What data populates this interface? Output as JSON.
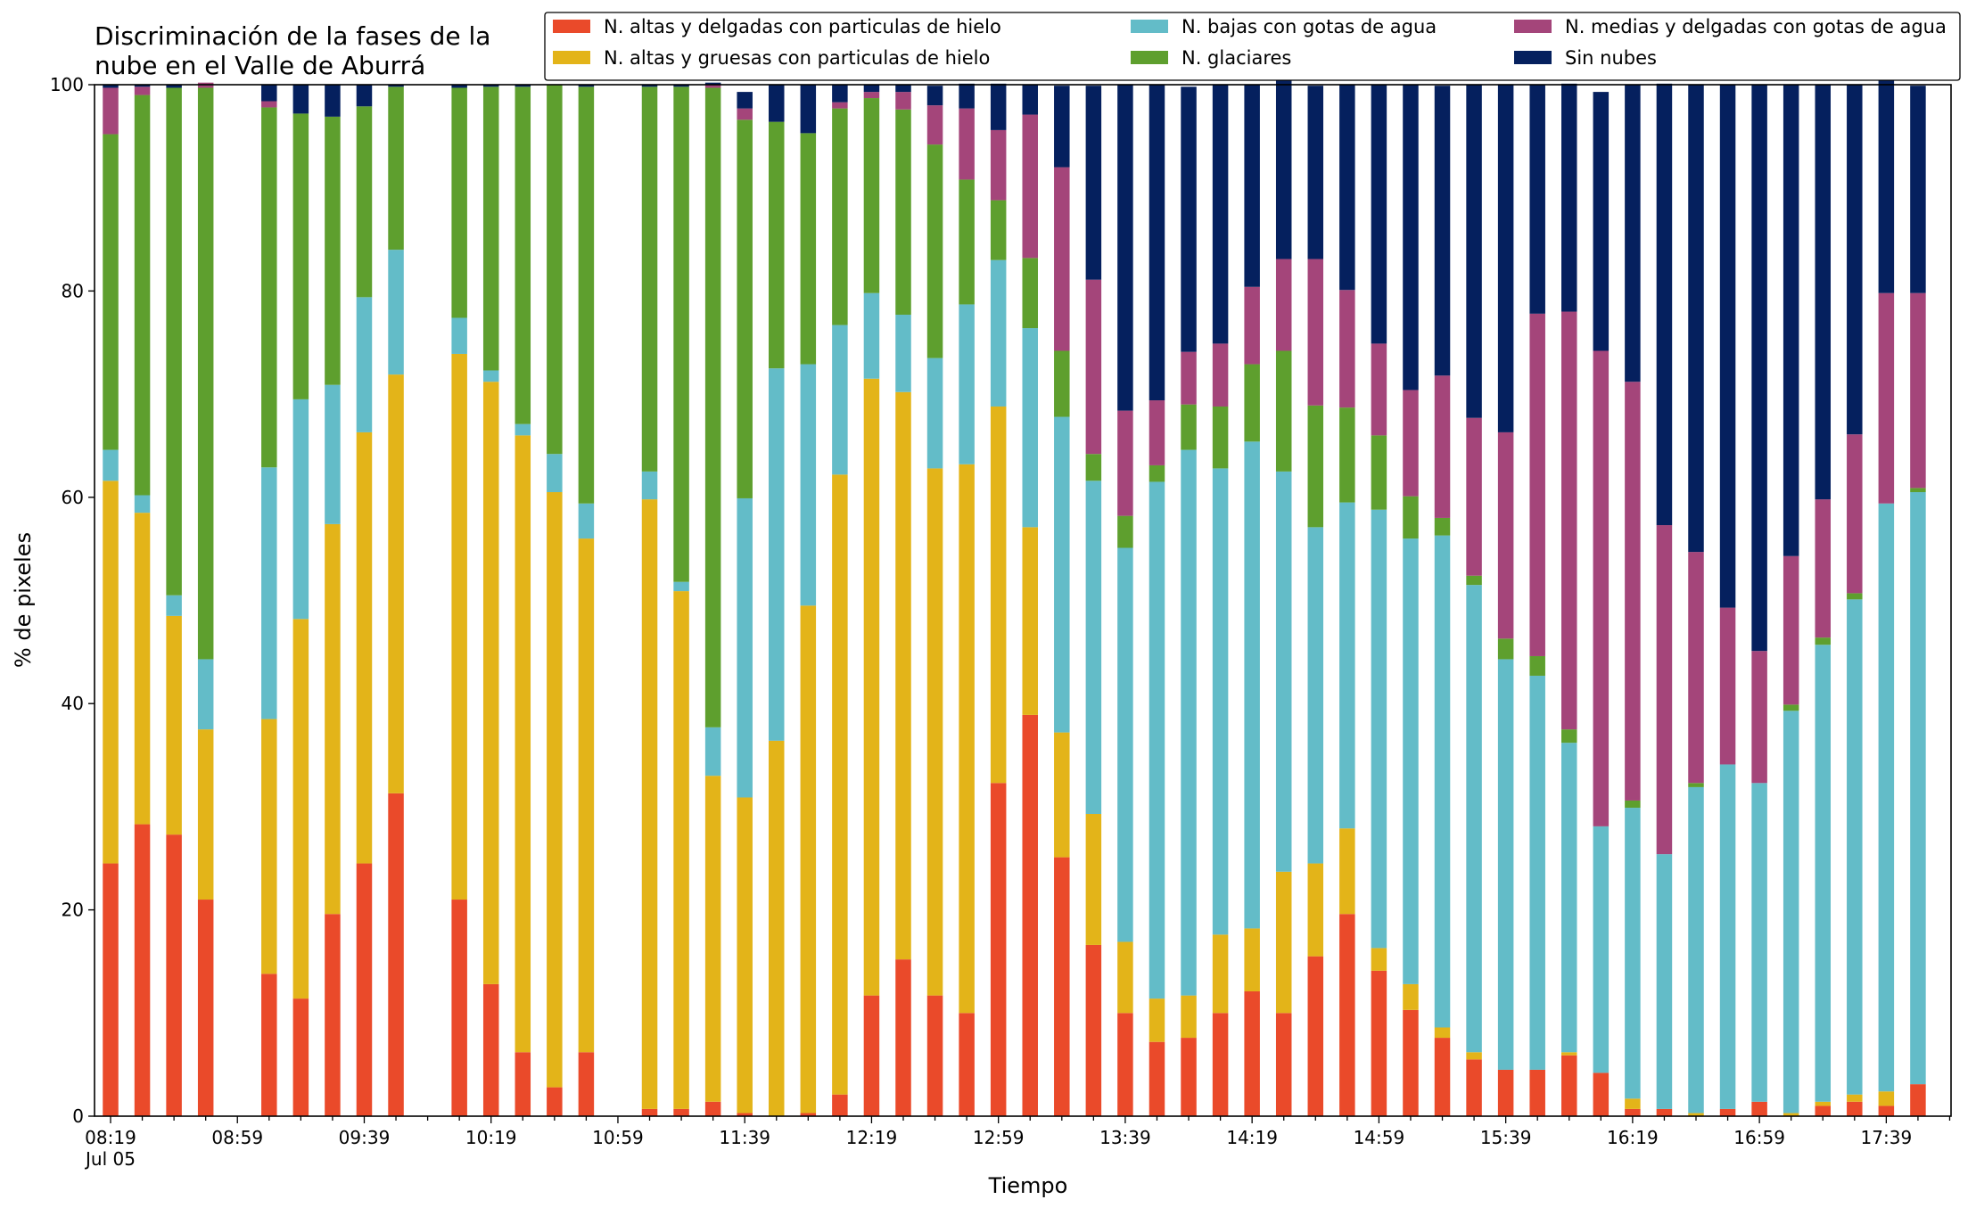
{
  "chart_data": {
    "type": "bar",
    "stacked": true,
    "title_lines": [
      "Discriminación de la fases de la",
      "nube en el Valle de Aburrá"
    ],
    "xlabel": "Tiempo",
    "ylabel": "% de pixeles",
    "ylim": [
      0,
      100
    ],
    "yticks": [
      0,
      20,
      40,
      60,
      80,
      100
    ],
    "x_tick_labels": [
      "08:19",
      "08:59",
      "09:39",
      "10:19",
      "10:59",
      "11:39",
      "12:19",
      "12:59",
      "13:39",
      "14:19",
      "14:59",
      "15:39",
      "16:19",
      "16:59",
      "17:39"
    ],
    "x_tick_sublabel": "Jul 05",
    "grid": false,
    "legend_position": "top-right",
    "time_start": "08:19",
    "time_step_minutes": 10,
    "categories": [
      "08:19",
      "08:29",
      "08:39",
      "08:49",
      "08:59",
      "09:09",
      "09:19",
      "09:29",
      "09:39",
      "09:49",
      "09:59",
      "10:09",
      "10:19",
      "10:29",
      "10:39",
      "10:49",
      "10:59",
      "11:09",
      "11:19",
      "11:29",
      "11:39",
      "11:49",
      "11:59",
      "12:09",
      "12:19",
      "12:29",
      "12:39",
      "12:49",
      "12:59",
      "13:09",
      "13:19",
      "13:29",
      "13:39",
      "13:49",
      "13:59",
      "14:09",
      "14:19",
      "14:29",
      "14:39",
      "14:49",
      "14:59",
      "15:09",
      "15:19",
      "15:29",
      "15:39",
      "15:49",
      "15:59",
      "16:09",
      "16:19",
      "16:29",
      "16:39",
      "16:49",
      "16:59",
      "17:09",
      "17:19",
      "17:29",
      "17:39",
      "17:49"
    ],
    "series": [
      {
        "name": "N. altas y delgadas con particulas de hielo",
        "color": "#ea4a2a",
        "values": [
          24.5,
          28.3,
          27.3,
          21,
          null,
          13.8,
          11.4,
          19.6,
          24.5,
          31.3,
          null,
          21,
          12.8,
          6.2,
          2.8,
          6.2,
          null,
          0.7,
          0.7,
          1.4,
          0.3,
          0,
          0.3,
          2.1,
          11.7,
          15.2,
          11.7,
          10,
          32.3,
          38.9,
          25.1,
          16.6,
          10,
          7.2,
          7.6,
          10,
          12.1,
          10,
          15.5,
          19.6,
          14.1,
          10.3,
          7.6,
          5.5,
          4.5,
          4.5,
          5.9,
          4.2,
          0.7,
          0.7,
          0,
          0.7,
          1.4,
          0,
          1,
          1.4,
          1,
          3.1
        ]
      },
      {
        "name": "N. altas y gruesas con particulas de hielo",
        "color": "#e3b419",
        "values": [
          37.1,
          30.2,
          21.2,
          16.5,
          null,
          24.7,
          36.8,
          37.8,
          41.8,
          40.6,
          null,
          52.9,
          58.4,
          59.8,
          57.7,
          49.8,
          null,
          59.1,
          50.2,
          31.6,
          30.6,
          36.4,
          49.2,
          60.1,
          59.8,
          55,
          51.1,
          53.2,
          36.5,
          18.2,
          12.1,
          12.7,
          6.9,
          4.2,
          4.1,
          7.6,
          6.1,
          13.7,
          9,
          8.3,
          2.2,
          2.5,
          1,
          0.7,
          0,
          0,
          0.3,
          0,
          1,
          0,
          0.3,
          0,
          0,
          0.3,
          0.4,
          0.7,
          1.4,
          0
        ]
      },
      {
        "name": "N. bajas con gotas de agua",
        "color": "#63bcc8",
        "values": [
          3,
          1.7,
          2,
          6.8,
          null,
          24.4,
          21.3,
          13.5,
          13.1,
          12.1,
          null,
          3.5,
          1.1,
          1.1,
          3.7,
          3.4,
          null,
          2.7,
          0.9,
          4.7,
          29,
          36.1,
          23.4,
          14.5,
          8.3,
          7.5,
          10.7,
          15.5,
          14.2,
          19.3,
          30.6,
          32.3,
          38.2,
          50.1,
          52.9,
          45.2,
          47.2,
          38.8,
          32.6,
          31.6,
          42.5,
          43.2,
          47.7,
          45.3,
          39.8,
          38.2,
          30,
          23.9,
          28.2,
          24.7,
          31.6,
          33.4,
          30.9,
          39,
          44.3,
          48,
          57,
          57.4
        ]
      },
      {
        "name": "N. glaciares",
        "color": "#5e9f2e",
        "values": [
          30.6,
          38.8,
          49.2,
          55.4,
          null,
          34.9,
          27.7,
          26,
          18.5,
          15.8,
          null,
          22.3,
          27.5,
          32.7,
          35.8,
          40.4,
          null,
          37.3,
          48,
          62,
          36.7,
          23.9,
          22.4,
          21,
          18.9,
          19.9,
          20.7,
          12.1,
          5.8,
          6.8,
          6.4,
          2.6,
          3.1,
          1.6,
          4.4,
          6,
          7.5,
          11.7,
          11.8,
          9.2,
          7.2,
          4.1,
          1.7,
          0.9,
          2,
          1.9,
          1.3,
          0,
          0.7,
          0,
          0.4,
          0,
          0,
          0.6,
          0.7,
          0.6,
          0,
          0.4
        ]
      },
      {
        "name": "N. medias y delgadas con gotas de agua",
        "color": "#a4457a",
        "values": [
          4.5,
          0.8,
          0,
          0.5,
          null,
          0.6,
          0,
          0,
          0,
          0,
          null,
          0,
          0,
          0,
          0,
          0,
          null,
          0,
          0,
          0.3,
          1.1,
          0,
          0,
          0.6,
          0.6,
          1.7,
          3.8,
          6.9,
          6.8,
          13.9,
          17.8,
          16.9,
          10.2,
          6.3,
          5.1,
          6.1,
          7.5,
          8.9,
          14.2,
          11.4,
          8.9,
          10.3,
          13.8,
          15.3,
          20,
          33.2,
          40.5,
          46.1,
          40.6,
          31.9,
          22.4,
          15.2,
          12.8,
          14.4,
          13.4,
          15.4,
          20.4,
          18.9
        ]
      },
      {
        "name": "Sin nubes",
        "color": "#05205e",
        "values": [
          0.3,
          0.2,
          0.3,
          0,
          null,
          1.6,
          2.8,
          3.1,
          2.1,
          0.2,
          null,
          0.3,
          0.2,
          0.2,
          0,
          0.2,
          null,
          0.2,
          0.2,
          0.2,
          1.6,
          3.6,
          4.7,
          1.7,
          0.7,
          0.7,
          1.9,
          2.4,
          4.5,
          2.9,
          7.9,
          18.8,
          31.6,
          30.6,
          25.7,
          25.1,
          19.6,
          17.8,
          16.8,
          19.9,
          25.1,
          29.6,
          28.1,
          32.3,
          33.7,
          22.2,
          22.1,
          25.1,
          28.8,
          42.8,
          45.3,
          50.7,
          54.9,
          45.7,
          40.2,
          33.9,
          24.8,
          20.1
        ]
      }
    ]
  }
}
